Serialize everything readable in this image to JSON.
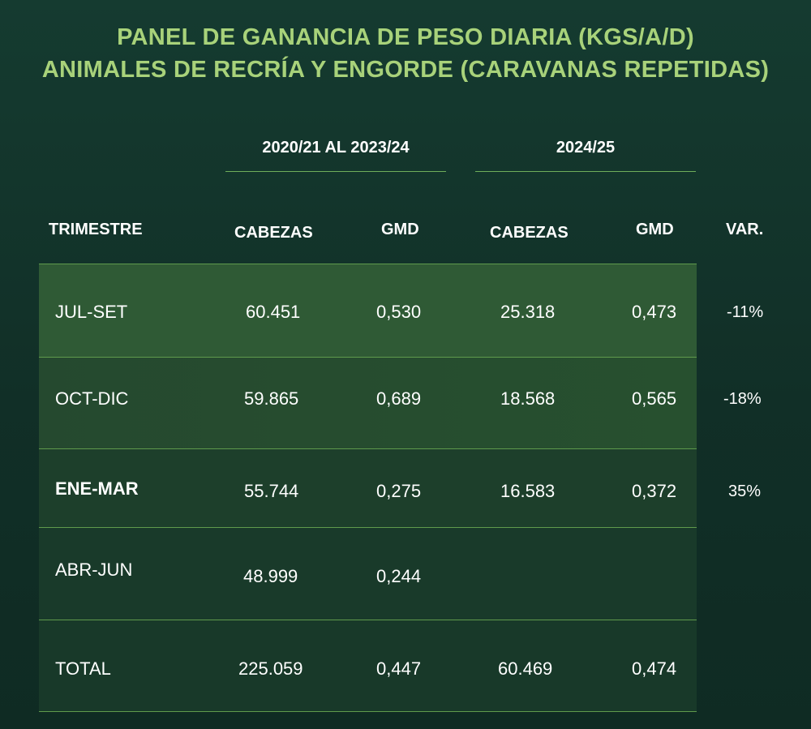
{
  "title_line1": "PANEL DE GANANCIA DE PESO DIARIA (KGS/A/D)",
  "title_line2": "ANIMALES DE RECRÍA Y ENGORDE (CARAVANAS REPETIDAS)",
  "colors": {
    "background": "#123328",
    "title": "#a8d27a",
    "row_highlight": "#2f5a35",
    "row_band_1": "#244a2d",
    "row_band_2": "#1b3d2a",
    "row_band_3": "#183a2a",
    "row_band_4": "#183a2a",
    "divider": "#5f9a4c"
  },
  "chart_data": {
    "type": "table",
    "group_headers": [
      "2020/21 AL 2023/24",
      "2024/25"
    ],
    "columns": [
      "TRIMESTRE",
      "CABEZAS",
      "GMD",
      "CABEZAS",
      "GMD",
      "VAR."
    ],
    "rows": [
      {
        "trimestre": "JUL-SET",
        "cabezas_hist": "60.451",
        "gmd_hist": "0,530",
        "cabezas_2425": "25.318",
        "gmd_2425": "0,473",
        "var": "-11%"
      },
      {
        "trimestre": "OCT-DIC",
        "cabezas_hist": "59.865",
        "gmd_hist": "0,689",
        "cabezas_2425": "18.568",
        "gmd_2425": "0,565",
        "var": "-18%"
      },
      {
        "trimestre": "ENE-MAR",
        "cabezas_hist": "55.744",
        "gmd_hist": "0,275",
        "cabezas_2425": "16.583",
        "gmd_2425": "0,372",
        "var": "35%"
      },
      {
        "trimestre": "ABR-JUN",
        "cabezas_hist": "48.999",
        "gmd_hist": "0,244",
        "cabezas_2425": "",
        "gmd_2425": "",
        "var": ""
      },
      {
        "trimestre": "TOTAL",
        "cabezas_hist": "225.059",
        "gmd_hist": "0,447",
        "cabezas_2425": "60.469",
        "gmd_2425": "0,474",
        "var": ""
      }
    ]
  }
}
